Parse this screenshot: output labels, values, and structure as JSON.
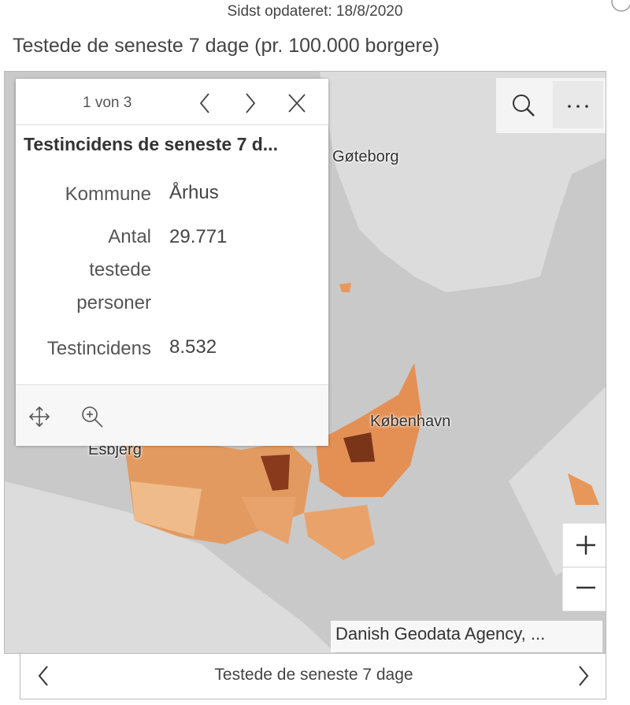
{
  "header": {
    "updated": "Sidst opdateret: 18/8/2020",
    "title": "Testede de seneste 7 dage (pr. 100.000 borgere)"
  },
  "popup": {
    "pager": "1 von 3",
    "title": "Testincidens de seneste 7 d...",
    "fields": [
      {
        "label": "Kommune",
        "value": "Århus"
      },
      {
        "label": "Antal testede personer",
        "value": "29.771"
      },
      {
        "label": "Testincidens",
        "value": "8.532"
      }
    ]
  },
  "map": {
    "labels": [
      "Gøteborg",
      "København",
      "Esbjerg"
    ],
    "attribution": "Danish Geodata Agency, ..."
  },
  "footer": {
    "title": "Testede de seneste 7 dage"
  }
}
